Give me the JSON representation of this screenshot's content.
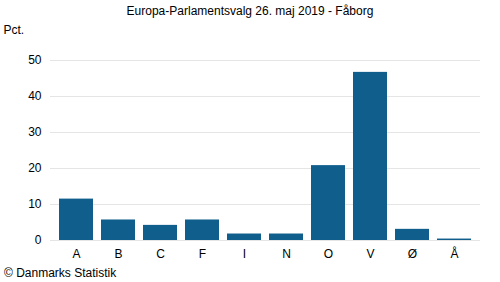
{
  "chart_data": {
    "type": "bar",
    "title": "Europa-Parlamentsvalg 26. maj 2019 - Fåborg",
    "y_label": "Pct.",
    "caption": "© Danmarks Statistik",
    "categories": [
      "A",
      "B",
      "C",
      "F",
      "I",
      "N",
      "O",
      "V",
      "Ø",
      "Å"
    ],
    "values": [
      11.5,
      5.7,
      4.2,
      5.7,
      1.8,
      1.8,
      20.8,
      46.7,
      3.1,
      0.4
    ],
    "color": "#0f5e8c",
    "ylim": [
      0,
      50
    ],
    "yticks": [
      0,
      10,
      20,
      30,
      40,
      50
    ],
    "grid": true
  }
}
